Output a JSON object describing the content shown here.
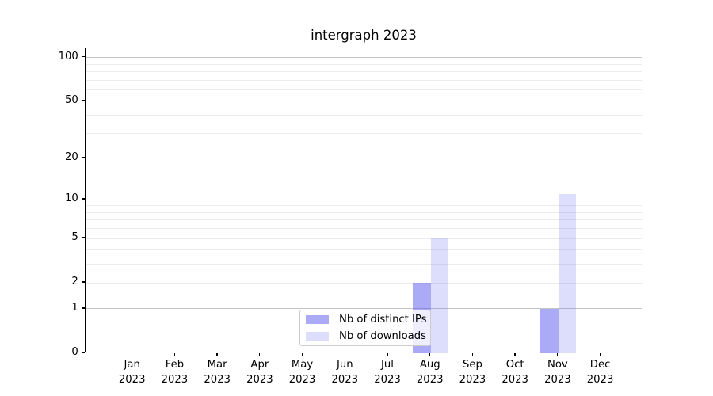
{
  "title": "intergraph 2023",
  "chart_data": {
    "type": "bar",
    "title": "intergraph 2023",
    "x_axis": {
      "months": [
        "Jan",
        "Feb",
        "Mar",
        "Apr",
        "May",
        "Jun",
        "Jul",
        "Aug",
        "Sep",
        "Oct",
        "Nov",
        "Dec"
      ],
      "year": "2023"
    },
    "y_axis": {
      "scale": "log1p",
      "tick_values": [
        0,
        1,
        2,
        5,
        10,
        20,
        50,
        100
      ],
      "major_gridlines": [
        1,
        10,
        100
      ],
      "minor_gridlines": [
        2,
        3,
        4,
        5,
        6,
        7,
        8,
        9,
        20,
        30,
        40,
        50,
        60,
        70,
        80,
        90
      ],
      "range": [
        0,
        116
      ],
      "grid": true
    },
    "series": [
      {
        "name": "Nb of distinct IPs",
        "color": "rgba(85,85,240,0.5)",
        "color_hex_on_white": "#aaaaf7",
        "values": [
          0,
          0,
          0,
          0,
          0,
          0,
          0,
          2,
          0,
          0,
          1,
          0
        ]
      },
      {
        "name": "Nb of downloads",
        "color": "rgba(85,85,240,0.2)",
        "color_hex_on_white": "#dadafb",
        "values": [
          0,
          0,
          0,
          0,
          0,
          0,
          0,
          5,
          0,
          0,
          11,
          0
        ]
      }
    ],
    "legend": {
      "position": "lower-center",
      "items": [
        {
          "label": "Nb of distinct IPs",
          "color": "rgba(85,85,240,0.5)"
        },
        {
          "label": "Nb of downloads",
          "color": "rgba(85,85,240,0.2)"
        }
      ]
    }
  },
  "colors": {
    "background": "#ffffff",
    "spine": "#000000",
    "major_grid": "#c4c4c4",
    "minor_grid": "#ececec",
    "text": "#000000"
  }
}
